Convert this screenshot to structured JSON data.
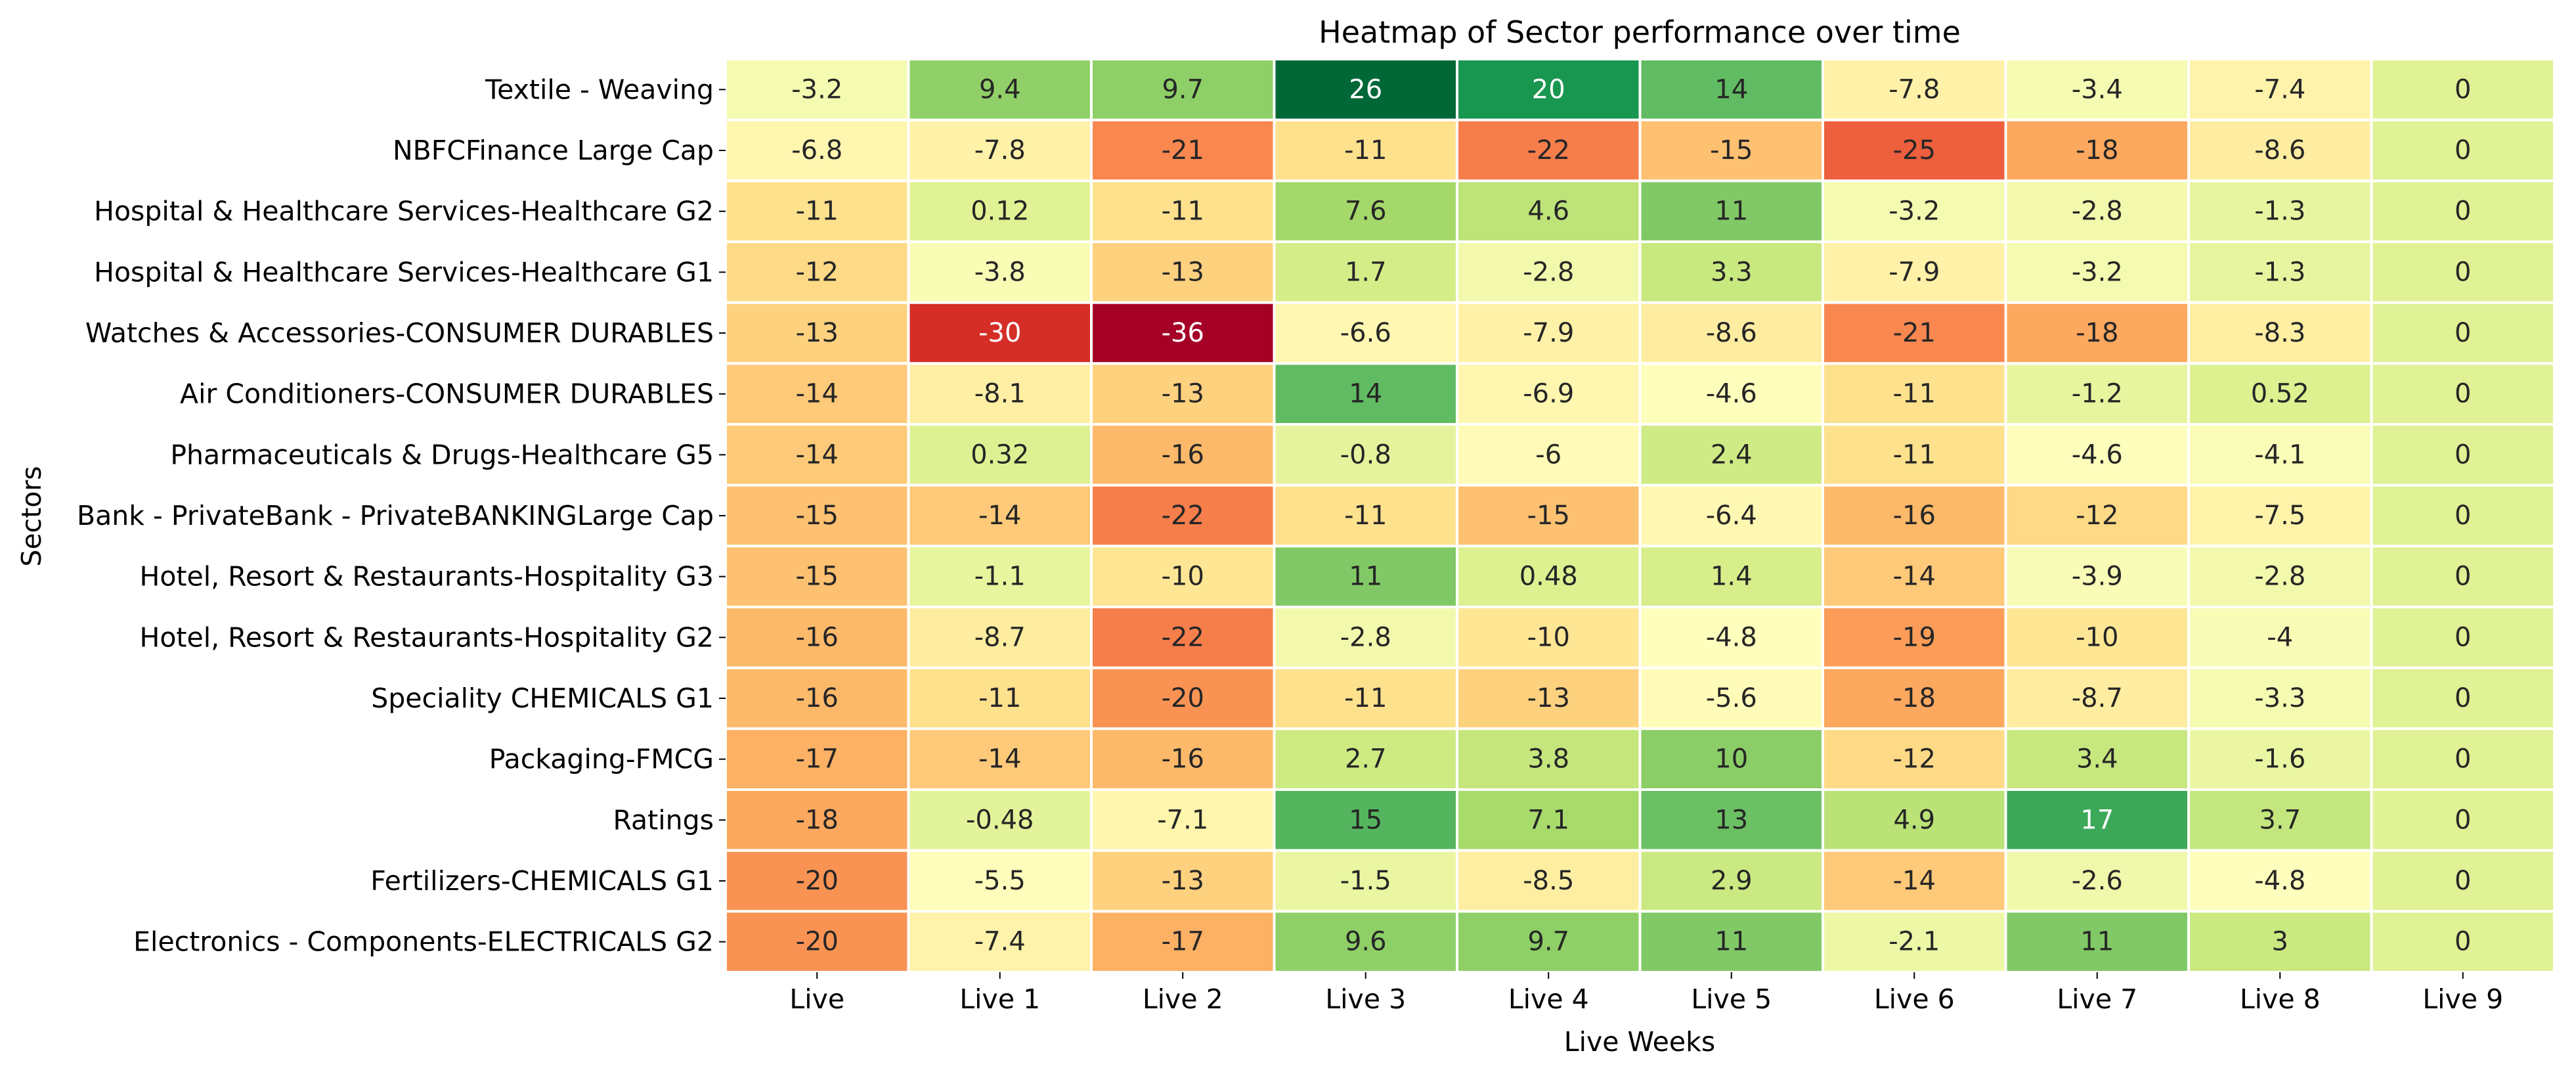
{
  "chart_data": {
    "type": "heatmap",
    "title": "Heatmap of Sector performance over time",
    "xlabel": "Live Weeks",
    "ylabel": "Sectors",
    "colormap": "RdYlGn",
    "vmin": -36,
    "vmax": 26,
    "colorbar": false,
    "annotations": true,
    "x_categories": [
      "Live",
      "Live 1",
      "Live 2",
      "Live 3",
      "Live 4",
      "Live 5",
      "Live 6",
      "Live 7",
      "Live 8",
      "Live 9"
    ],
    "y_categories": [
      "Textile - Weaving",
      "NBFCFinance Large Cap",
      "Hospital & Healthcare Services-Healthcare G2",
      "Hospital & Healthcare Services-Healthcare G1",
      "Watches & Accessories-CONSUMER DURABLES",
      "Air Conditioners-CONSUMER DURABLES",
      "Pharmaceuticals & Drugs-Healthcare G5",
      "Bank - PrivateBank - PrivateBANKINGLarge Cap",
      "Hotel, Resort & Restaurants-Hospitality G3",
      "Hotel, Resort & Restaurants-Hospitality G2",
      "Speciality CHEMICALS G1",
      "Packaging-FMCG",
      "Ratings",
      "Fertilizers-CHEMICALS G1",
      "Electronics - Components-ELECTRICALS G2"
    ],
    "values": [
      [
        -3.2,
        9.4,
        9.7,
        26,
        20,
        14,
        -7.8,
        -3.4,
        -7.4,
        0
      ],
      [
        -6.8,
        -7.8,
        -21,
        -11,
        -22,
        -15,
        -25,
        -18,
        -8.6,
        0
      ],
      [
        -11,
        0.12,
        -11,
        7.6,
        4.6,
        11,
        -3.2,
        -2.8,
        -1.3,
        0
      ],
      [
        -12,
        -3.8,
        -13,
        1.7,
        -2.8,
        3.3,
        -7.9,
        -3.2,
        -1.3,
        0
      ],
      [
        -13,
        -30,
        -36,
        -6.6,
        -7.9,
        -8.6,
        -21,
        -18,
        -8.3,
        0
      ],
      [
        -14,
        -8.1,
        -13,
        14,
        -6.9,
        -4.6,
        -11,
        -1.2,
        0.52,
        0
      ],
      [
        -14,
        0.32,
        -16,
        -0.8,
        -6,
        2.4,
        -11,
        -4.6,
        -4.1,
        0
      ],
      [
        -15,
        -14,
        -22,
        -11,
        -15,
        -6.4,
        -16,
        -12,
        -7.5,
        0
      ],
      [
        -15,
        -1.1,
        -10,
        11,
        0.48,
        1.4,
        -14,
        -3.9,
        -2.8,
        0
      ],
      [
        -16,
        -8.7,
        -22,
        -2.8,
        -10,
        -4.8,
        -19,
        -10,
        -4,
        0
      ],
      [
        -16,
        -11,
        -20,
        -11,
        -13,
        -5.6,
        -18,
        -8.7,
        -3.3,
        0
      ],
      [
        -17,
        -14,
        -16,
        2.7,
        3.8,
        10,
        -12,
        3.4,
        -1.6,
        0
      ],
      [
        -18,
        -0.48,
        -7.1,
        15,
        7.1,
        13,
        4.9,
        17,
        3.7,
        0
      ],
      [
        -20,
        -5.5,
        -13,
        -1.5,
        -8.5,
        2.9,
        -14,
        -2.6,
        -4.8,
        0
      ],
      [
        -20,
        -7.4,
        -17,
        9.6,
        9.7,
        11,
        -2.1,
        11,
        3,
        0
      ]
    ]
  }
}
